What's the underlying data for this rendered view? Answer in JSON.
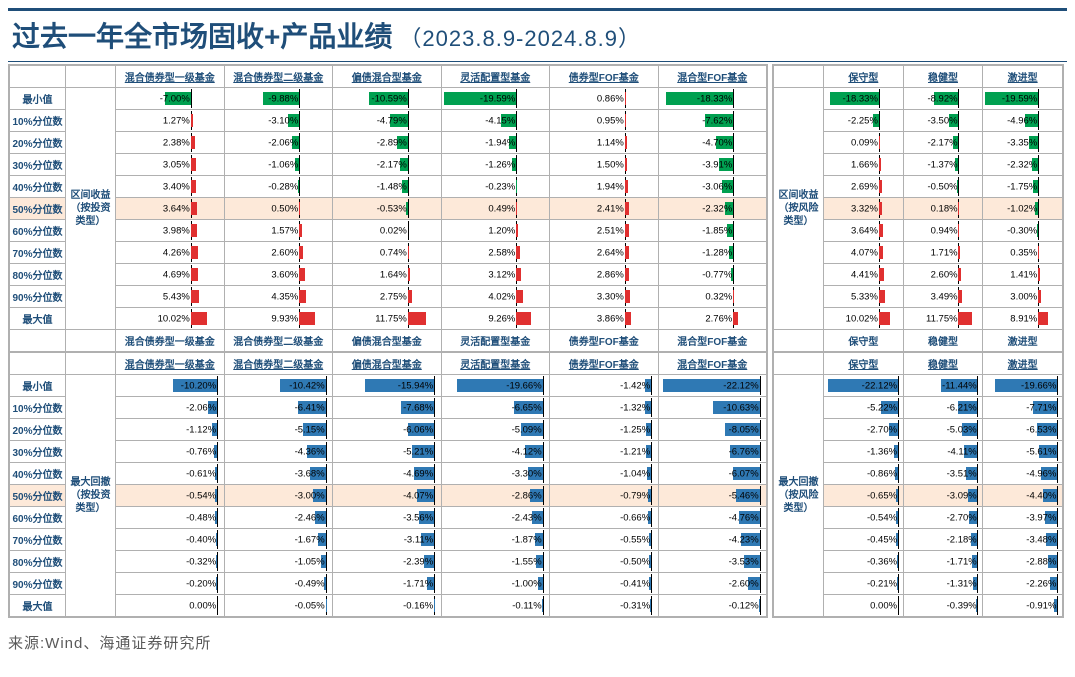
{
  "title": "过去一年全市场固收+产品业绩",
  "date_range": "（2023.8.9-2024.8.9）",
  "source": "来源:Wind、海通证券研究所",
  "colors": {
    "pos": "#e03030",
    "neg": "#00a050",
    "dd": "#2f79b4",
    "axis": "#000000",
    "highlight": "#fde9d9",
    "border": "#b0b0b0",
    "header_text": "#1f4e79"
  },
  "row_labels": [
    "最小值",
    "10%分位数",
    "20%分位数",
    "30%分位数",
    "40%分位数",
    "50%分位数",
    "60%分位数",
    "70%分位数",
    "80%分位数",
    "90%分位数",
    "最大值"
  ],
  "highlight_row_index": 5,
  "sections": {
    "returns_left": {
      "group_label": "区间收益（按投资类型）",
      "columns": [
        "混合债券型一级基金",
        "混合债券型二级基金",
        "偏债混合型基金",
        "灵活配置型基金",
        "债券型FOF基金",
        "混合型FOF基金"
      ],
      "footer_repeat": true,
      "scale": 20,
      "axis_pct": 70,
      "data": [
        [
          -7.0,
          -9.88,
          -10.59,
          -19.59,
          0.86,
          -18.33
        ],
        [
          1.27,
          -3.1,
          -4.79,
          -4.15,
          0.95,
          -7.62
        ],
        [
          2.38,
          -2.06,
          -2.89,
          -1.94,
          1.14,
          -4.7
        ],
        [
          3.05,
          -1.06,
          -2.17,
          -1.26,
          1.5,
          -3.91
        ],
        [
          3.4,
          -0.28,
          -1.48,
          -0.23,
          1.94,
          -3.06
        ],
        [
          3.64,
          0.5,
          -0.53,
          0.49,
          2.41,
          -2.32
        ],
        [
          3.98,
          1.57,
          0.02,
          1.2,
          2.51,
          -1.85
        ],
        [
          4.26,
          2.6,
          0.74,
          2.58,
          2.64,
          -1.28
        ],
        [
          4.69,
          3.6,
          1.64,
          3.12,
          2.86,
          -0.77
        ],
        [
          5.43,
          4.35,
          2.75,
          4.02,
          3.3,
          0.32
        ],
        [
          10.02,
          9.93,
          11.75,
          9.26,
          3.86,
          2.76
        ]
      ]
    },
    "returns_right": {
      "group_label": "区间收益（按风险类型）",
      "columns": [
        "保守型",
        "稳健型",
        "激进型"
      ],
      "footer_repeat": true,
      "scale": 20,
      "axis_pct": 70,
      "data": [
        [
          -18.33,
          -8.92,
          -19.59
        ],
        [
          -2.25,
          -3.5,
          -4.96
        ],
        [
          0.09,
          -2.17,
          -3.35
        ],
        [
          1.66,
          -1.37,
          -2.32
        ],
        [
          2.69,
          -0.5,
          -1.75
        ],
        [
          3.32,
          0.18,
          -1.02
        ],
        [
          3.64,
          0.94,
          -0.3
        ],
        [
          4.07,
          1.71,
          0.35
        ],
        [
          4.41,
          2.6,
          1.41
        ],
        [
          5.33,
          3.49,
          3.0
        ],
        [
          10.02,
          11.75,
          8.91
        ]
      ]
    },
    "drawdown_left": {
      "group_label": "最大回撤（按投资类型）",
      "columns": [
        "混合债券型一级基金",
        "混合债券型二级基金",
        "偏债混合型基金",
        "灵活配置型基金",
        "债券型FOF基金",
        "混合型FOF基金"
      ],
      "footer_repeat": false,
      "scale": 23,
      "axis_pct": 95,
      "mono_color": true,
      "data": [
        [
          -10.2,
          -10.42,
          -15.94,
          -19.66,
          -1.42,
          -22.12
        ],
        [
          -2.06,
          -6.41,
          -7.68,
          -6.65,
          -1.32,
          -10.63
        ],
        [
          -1.12,
          -5.15,
          -6.06,
          -5.09,
          -1.25,
          -8.05
        ],
        [
          -0.76,
          -4.36,
          -5.21,
          -4.12,
          -1.21,
          -6.76
        ],
        [
          -0.61,
          -3.68,
          -4.69,
          -3.3,
          -1.04,
          -6.07
        ],
        [
          -0.54,
          -3.0,
          -4.07,
          -2.86,
          -0.79,
          -5.46
        ],
        [
          -0.48,
          -2.46,
          -3.56,
          -2.43,
          -0.66,
          -4.76
        ],
        [
          -0.4,
          -1.67,
          -3.11,
          -1.87,
          -0.55,
          -4.23
        ],
        [
          -0.32,
          -1.05,
          -2.39,
          -1.55,
          -0.5,
          -3.53
        ],
        [
          -0.2,
          -0.49,
          -1.71,
          -1.0,
          -0.41,
          -2.6
        ],
        [
          0.0,
          -0.05,
          -0.16,
          -0.11,
          -0.31,
          -0.12
        ]
      ]
    },
    "drawdown_right": {
      "group_label": "最大回撤（按风险类型）",
      "columns": [
        "保守型",
        "稳健型",
        "激进型"
      ],
      "footer_repeat": false,
      "scale": 23,
      "axis_pct": 95,
      "mono_color": true,
      "data": [
        [
          -22.12,
          -11.44,
          -19.66
        ],
        [
          -5.22,
          -6.21,
          -7.71
        ],
        [
          -2.7,
          -5.03,
          -6.53
        ],
        [
          -1.36,
          -4.11,
          -5.61
        ],
        [
          -0.86,
          -3.51,
          -4.96
        ],
        [
          -0.65,
          -3.09,
          -4.4
        ],
        [
          -0.54,
          -2.7,
          -3.97
        ],
        [
          -0.45,
          -2.18,
          -3.48
        ],
        [
          -0.36,
          -1.71,
          -2.88
        ],
        [
          -0.21,
          -1.31,
          -2.26
        ],
        [
          0.0,
          -0.39,
          -0.91
        ]
      ]
    }
  }
}
